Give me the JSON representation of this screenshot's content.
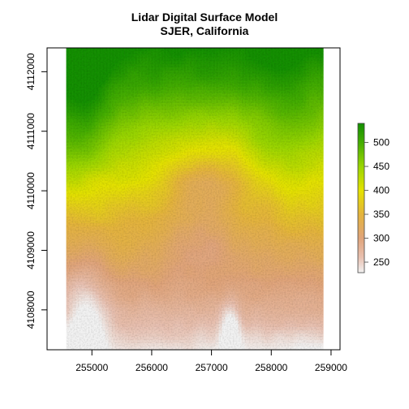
{
  "chart_data": {
    "type": "heatmap",
    "title": "Lidar Digital Surface Model",
    "subtitle": "SJER, California",
    "xlabel": "",
    "ylabel": "",
    "xlim": [
      254250,
      259150
    ],
    "ylim": [
      4107330,
      4112400
    ],
    "raster_extent": {
      "xmin": 254570,
      "xmax": 258870,
      "ymin": 4107330,
      "ymax": 4112400
    },
    "x_ticks": [
      {
        "value": 255000,
        "label": "255000"
      },
      {
        "value": 256000,
        "label": "256000"
      },
      {
        "value": 257000,
        "label": "257000"
      },
      {
        "value": 258000,
        "label": "258000"
      },
      {
        "value": 259000,
        "label": "259000"
      }
    ],
    "y_ticks": [
      {
        "value": 4108000,
        "label": "4108000"
      },
      {
        "value": 4109000,
        "label": "4109000"
      },
      {
        "value": 4110000,
        "label": "4110000"
      },
      {
        "value": 4111000,
        "label": "4111000"
      },
      {
        "value": 4112000,
        "label": "4112000"
      }
    ],
    "legend": {
      "placement": "right",
      "range": [
        228,
        540
      ],
      "ticks": [
        {
          "value": 250,
          "label": "250"
        },
        {
          "value": 300,
          "label": "300"
        },
        {
          "value": 350,
          "label": "350"
        },
        {
          "value": 400,
          "label": "400"
        },
        {
          "value": 450,
          "label": "450"
        },
        {
          "value": 500,
          "label": "500"
        }
      ],
      "color_stops": [
        {
          "value": 228,
          "color": "#f2f2f2"
        },
        {
          "value": 260,
          "color": "#e8c0b0"
        },
        {
          "value": 300,
          "color": "#e0a47a"
        },
        {
          "value": 350,
          "color": "#e4b43c"
        },
        {
          "value": 400,
          "color": "#e4e200"
        },
        {
          "value": 450,
          "color": "#99d500"
        },
        {
          "value": 500,
          "color": "#44ad00"
        },
        {
          "value": 540,
          "color": "#138f00"
        }
      ]
    },
    "grid": false
  }
}
